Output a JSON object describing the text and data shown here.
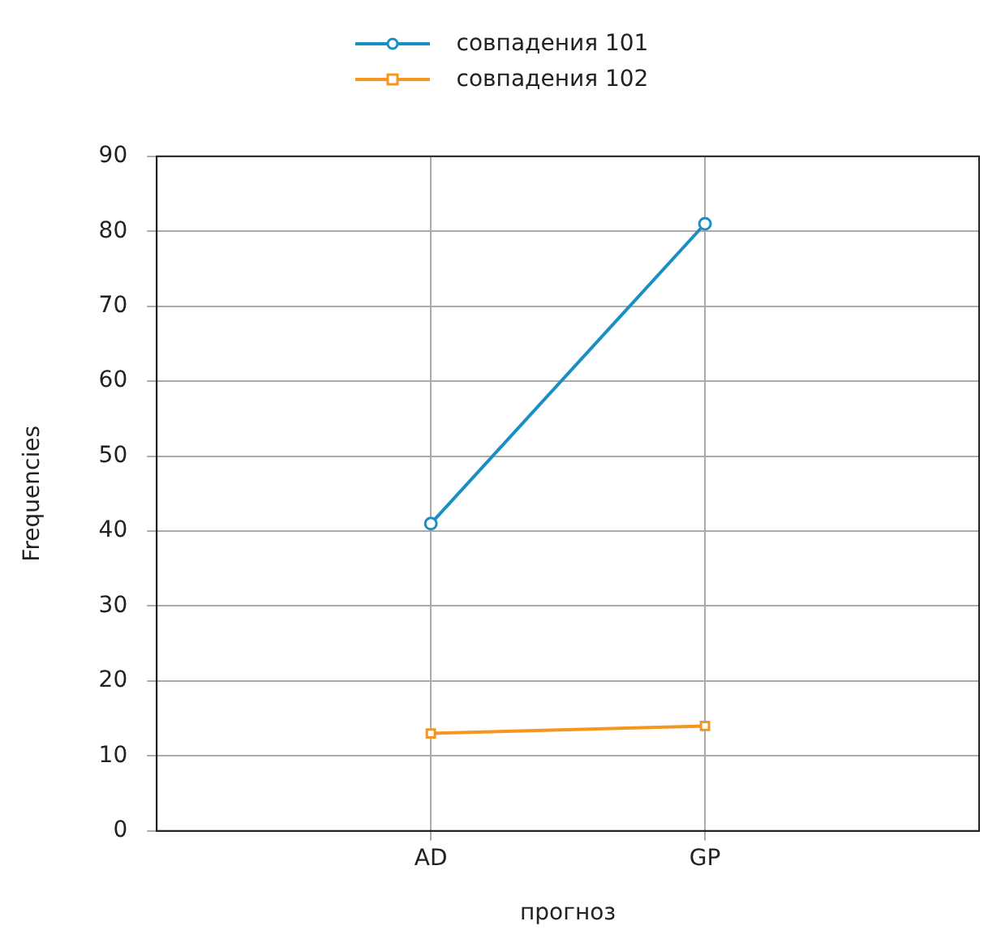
{
  "chart_data": {
    "type": "line",
    "xlabel": "прогноз",
    "ylabel": "Frequencies",
    "categories": [
      "AD",
      "GP"
    ],
    "series": [
      {
        "name": "совпадения 101",
        "color": "#1a8fc4",
        "values": [
          41,
          81
        ],
        "marker": "circle"
      },
      {
        "name": "совпадения 102",
        "color": "#f5961e",
        "values": [
          13,
          14
        ],
        "marker": "square"
      }
    ],
    "ylim": [
      0,
      90
    ],
    "yticks": [
      0,
      10,
      20,
      30,
      40,
      50,
      60,
      70,
      80,
      90
    ],
    "grid": true,
    "legend": "top",
    "line_style": "solid"
  }
}
